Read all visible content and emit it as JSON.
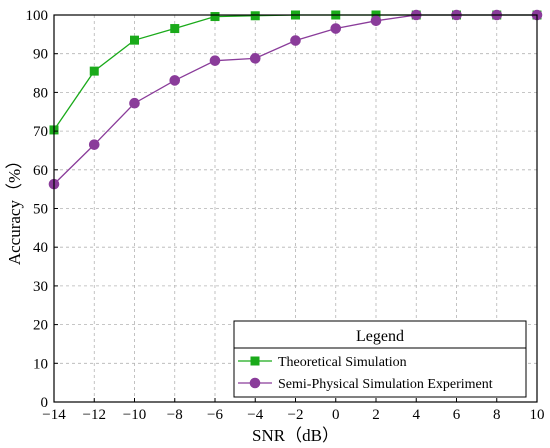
{
  "chart_data": {
    "type": "line",
    "xlabel": "SNR（dB）",
    "ylabel": "Accuracy（%）",
    "xlim": [
      -14,
      10
    ],
    "ylim": [
      0,
      100
    ],
    "x_ticks": [
      -14,
      -12,
      -10,
      -8,
      -6,
      -4,
      -2,
      0,
      2,
      4,
      6,
      8,
      10
    ],
    "y_ticks": [
      0,
      10,
      20,
      30,
      40,
      50,
      60,
      70,
      80,
      90,
      100
    ],
    "grid": true,
    "legend": {
      "title": "Legend",
      "placement": "bottom-right"
    },
    "x": [
      -14,
      -12,
      -10,
      -8,
      -6,
      -4,
      -2,
      0,
      2,
      4,
      6,
      8,
      10
    ],
    "series": [
      {
        "name": "Theoretical Simulation",
        "color": "#1aaa1a",
        "marker": "square",
        "values": [
          70.3,
          85.5,
          93.5,
          96.5,
          99.6,
          99.8,
          100,
          100,
          100,
          100,
          100,
          100,
          100
        ]
      },
      {
        "name": "Semi-Physical Simulation Experiment",
        "color": "#8a3c9a",
        "marker": "circle",
        "values": [
          56.3,
          66.5,
          77.2,
          83.1,
          88.2,
          88.8,
          93.4,
          96.5,
          98.5,
          100,
          100,
          100,
          100
        ]
      }
    ]
  }
}
